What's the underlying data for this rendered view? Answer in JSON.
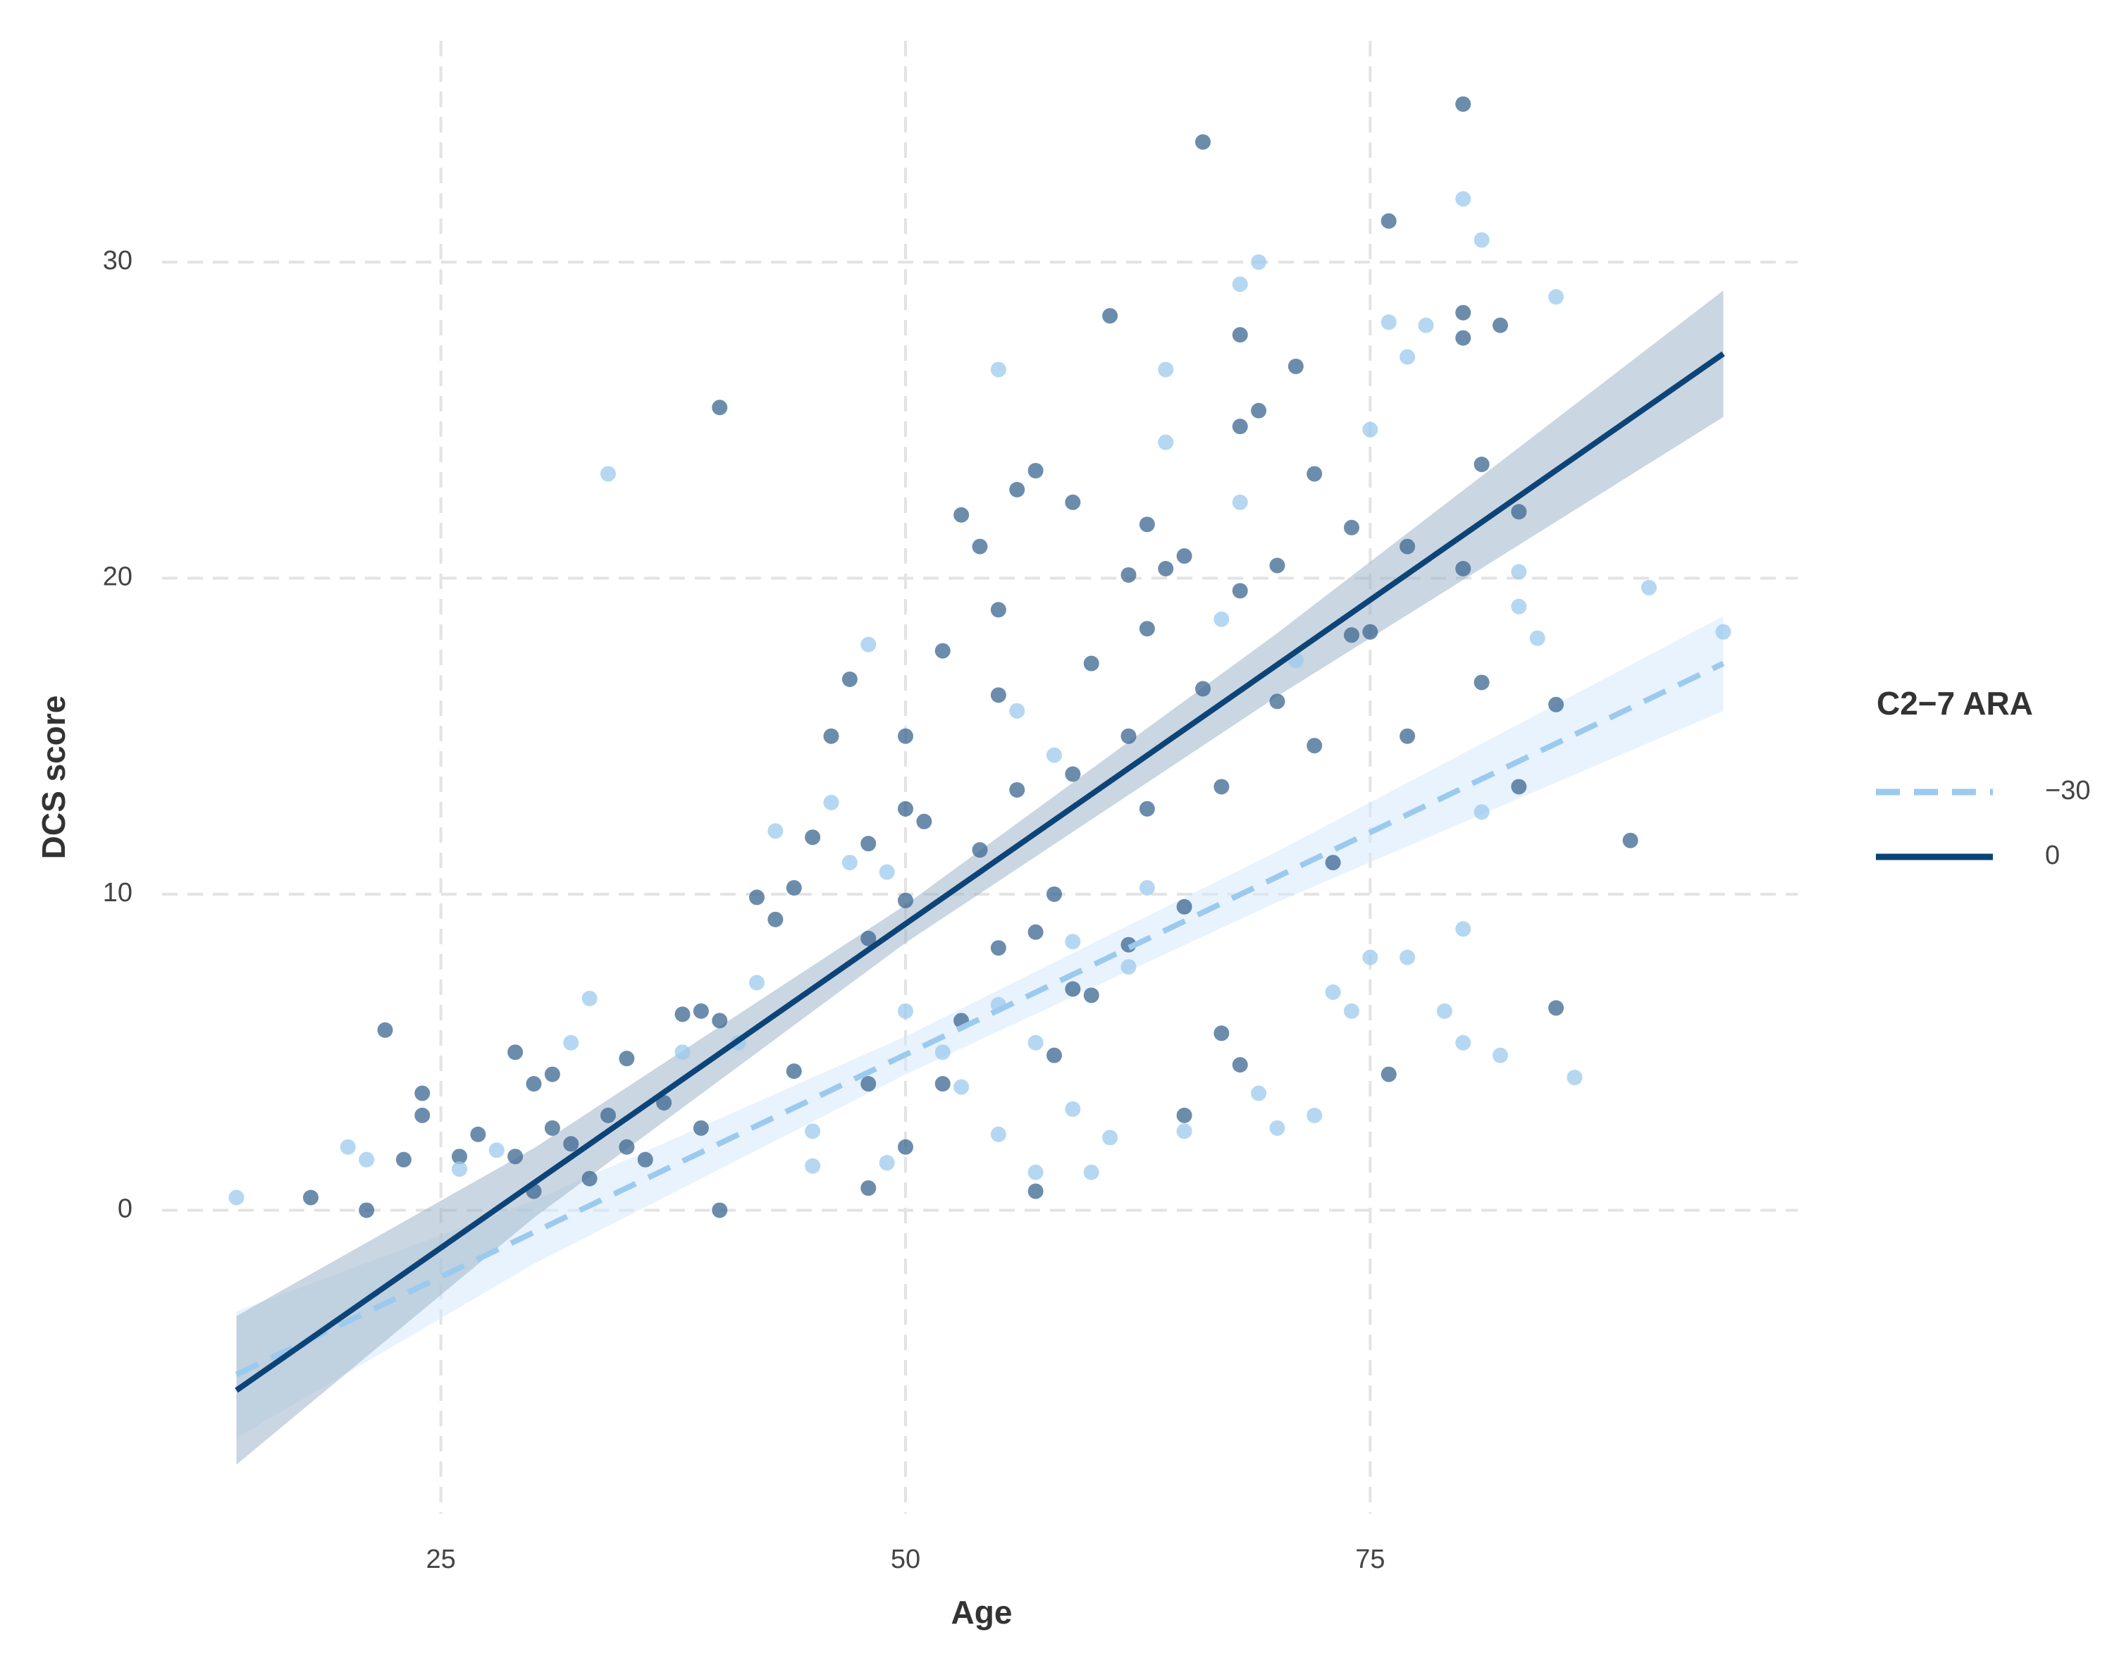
{
  "chart_data": {
    "type": "scatter",
    "x_label": "Age",
    "y_label": "DCS score",
    "legend_title": "C2−7 ARA",
    "legend": "right",
    "grid": true,
    "xlim": [
      10,
      98
    ],
    "ylim": [
      -9.6,
      37
    ],
    "xticks": [
      25,
      50,
      75
    ],
    "yticks": [
      0,
      10,
      20,
      30
    ],
    "points": [
      {
        "color": "#3b6590",
        "x": [
          18,
          22,
          24,
          24,
          23,
          26,
          27,
          29,
          29,
          30,
          31,
          31,
          32,
          34,
          35,
          35,
          36,
          37,
          38,
          39,
          39,
          40,
          40,
          42,
          43,
          44,
          45,
          44,
          46,
          47,
          48,
          48,
          48,
          50,
          50,
          50,
          51,
          52,
          53,
          54,
          54,
          55,
          55,
          56,
          56,
          57,
          57,
          57,
          58,
          59,
          59,
          59,
          60,
          61,
          62,
          62,
          63,
          63,
          64,
          65,
          66,
          66,
          67,
          68,
          68,
          68,
          69,
          70,
          70,
          71,
          72,
          72,
          73,
          74,
          74,
          75,
          76,
          76,
          77,
          77,
          80,
          80,
          80,
          80,
          81,
          81,
          82,
          83,
          83,
          85,
          85,
          89,
          62,
          60,
          58,
          55,
          53,
          52,
          50,
          48,
          40,
          33,
          30,
          21,
          65,
          67,
          68,
          65,
          63
        ],
        "values": [
          0.4,
          5.7,
          3.7,
          3,
          1.6,
          1.7,
          2.4,
          5,
          1.7,
          4,
          4.3,
          2.6,
          2.1,
          3,
          4.8,
          2,
          1.6,
          3.4,
          6.2,
          6.3,
          2.6,
          25.4,
          6,
          9.9,
          9.2,
          10.2,
          11.8,
          4.4,
          15,
          16.8,
          11.6,
          8.6,
          4,
          15,
          12.7,
          9.8,
          12.3,
          17.7,
          22,
          21,
          11.4,
          19,
          16.3,
          22.8,
          13.3,
          23.4,
          8.8,
          0.6,
          10,
          13.8,
          22.4,
          7,
          17.3,
          28.3,
          20.1,
          15,
          21.7,
          18.4,
          20.3,
          20.7,
          33.8,
          16.5,
          13.4,
          27.7,
          24.8,
          19.6,
          25.3,
          20.4,
          16.1,
          26.7,
          23.3,
          14.7,
          11,
          21.6,
          18.2,
          18.3,
          31.3,
          4.3,
          21,
          15,
          35,
          28.4,
          27.6,
          20.3,
          23.6,
          16.7,
          28,
          22.1,
          13.4,
          16,
          6.4,
          11.7,
          8.4,
          6.8,
          4.9,
          8.3,
          6,
          4,
          2,
          0.7,
          0,
          1,
          0.6,
          0,
          3,
          5.6,
          4.6,
          9.6,
          12.7
        ]
      },
      {
        "color": "#9ccaee",
        "x": [
          14,
          20,
          21,
          26,
          28,
          32,
          33,
          34,
          38,
          41,
          42,
          43,
          45,
          46,
          47,
          48,
          49,
          50,
          52,
          55,
          55,
          56,
          57,
          58,
          59,
          60,
          61,
          63,
          64,
          64,
          65,
          67,
          68,
          68,
          69,
          69,
          70,
          71,
          72,
          73,
          74,
          75,
          75,
          76,
          77,
          77,
          78,
          79,
          80,
          80,
          80,
          81,
          81,
          82,
          83,
          83,
          84,
          85,
          86,
          90,
          94,
          59,
          62,
          57,
          55,
          53,
          49,
          45
        ],
        "values": [
          0.4,
          2,
          1.6,
          1.3,
          1.9,
          5.3,
          6.7,
          23.3,
          5,
          5.3,
          7.2,
          12,
          2.5,
          12.9,
          11,
          17.9,
          10.7,
          6.3,
          5,
          26.6,
          2.4,
          15.8,
          1.2,
          14.4,
          3.2,
          1.2,
          2.3,
          10.2,
          26.6,
          24.3,
          2.5,
          18.7,
          29.3,
          22.4,
          30,
          3.7,
          2.6,
          17.4,
          3,
          6.9,
          6.3,
          24.7,
          8,
          28.1,
          27,
          8,
          28,
          6.3,
          32,
          8.9,
          5.3,
          30.7,
          12.6,
          4.9,
          19.1,
          20.2,
          18.1,
          28.9,
          4.2,
          19.7,
          18.3,
          8.5,
          7.7,
          5.3,
          6.5,
          3.9,
          1.5,
          1.4
        ]
      }
    ],
    "series": [
      {
        "name": "−30",
        "color": "#9ccaee",
        "dash": true,
        "x": [
          14,
          94
        ],
        "values": [
          -5.2,
          17.3
        ],
        "band": {
          "color": "#d6eafb",
          "x": [
            14,
            30,
            50,
            70,
            94
          ],
          "lower": [
            -7.2,
            -1.7,
            4.3,
            9.75,
            15.8
          ],
          "upper": [
            -3.2,
            0.3,
            5.5,
            11.35,
            18.8
          ]
        }
      },
      {
        "name": "0",
        "color": "#0d4478",
        "dash": false,
        "x": [
          14,
          94
        ],
        "values": [
          -5.7,
          27.1
        ],
        "band": {
          "color": "#9fb4c9",
          "x": [
            14,
            30,
            50,
            70,
            94
          ],
          "lower": [
            -8.05,
            -0.24,
            8.46,
            16.26,
            25.1
          ],
          "upper": [
            -3.35,
            1.96,
            9.66,
            18.26,
            29.1
          ]
        }
      }
    ]
  }
}
